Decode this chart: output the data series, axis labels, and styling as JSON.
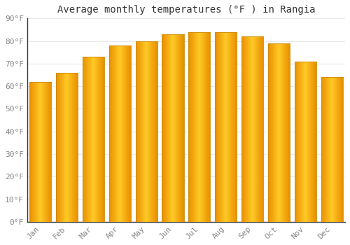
{
  "title": "Average monthly temperatures (°F ) in Rangia",
  "categories": [
    "Jan",
    "Feb",
    "Mar",
    "Apr",
    "May",
    "Jun",
    "Jul",
    "Aug",
    "Sep",
    "Oct",
    "Nov",
    "Dec"
  ],
  "values": [
    62,
    66,
    73,
    78,
    80,
    83,
    84,
    84,
    82,
    79,
    71,
    64
  ],
  "bar_color_center": "#FFC926",
  "bar_color_edge": "#E89000",
  "bar_width": 0.82,
  "ylim": [
    0,
    90
  ],
  "yticks": [
    0,
    10,
    20,
    30,
    40,
    50,
    60,
    70,
    80,
    90
  ],
  "ytick_labels": [
    "0°F",
    "10°F",
    "20°F",
    "30°F",
    "40°F",
    "50°F",
    "60°F",
    "70°F",
    "80°F",
    "90°F"
  ],
  "background_color": "#ffffff",
  "grid_color": "#e8e8e8",
  "title_fontsize": 10,
  "tick_fontsize": 8,
  "font_family": "monospace"
}
